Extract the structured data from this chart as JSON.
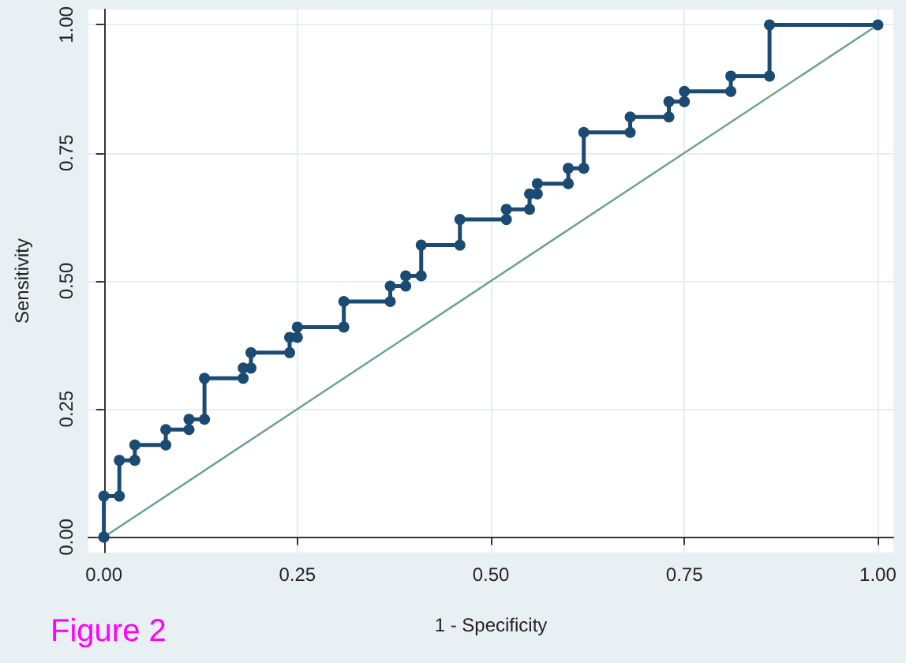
{
  "chart_data": {
    "type": "line",
    "xlabel": "1 - Specificity",
    "ylabel": "Sensitivity",
    "annotations": [
      "Figure 2"
    ],
    "xlim": [
      -0.02,
      1.02
    ],
    "ylim": [
      -0.03,
      1.03
    ],
    "xticks": [
      {
        "value": 0,
        "label": "0.00"
      },
      {
        "value": 0.25,
        "label": "0.25"
      },
      {
        "value": 0.5,
        "label": "0.50"
      },
      {
        "value": 0.75,
        "label": "0.75"
      },
      {
        "value": 1,
        "label": "1.00"
      }
    ],
    "yticks": [
      {
        "value": 0,
        "label": "0.00"
      },
      {
        "value": 0.25,
        "label": "0.25"
      },
      {
        "value": 0.5,
        "label": "0.50"
      },
      {
        "value": 0.75,
        "label": "0.75"
      },
      {
        "value": 1,
        "label": "1.00"
      }
    ],
    "grid": true,
    "line_style": "solid",
    "series": [
      {
        "color": "#1b4a72",
        "marker": "circle",
        "x": [
          0,
          0,
          0,
          0.02,
          0.02,
          0.04,
          0.04,
          0.08,
          0.08,
          0.11,
          0.11,
          0.13,
          0.13,
          0.18,
          0.18,
          0.19,
          0.19,
          0.24,
          0.24,
          0.25,
          0.25,
          0.31,
          0.31,
          0.37,
          0.37,
          0.39,
          0.39,
          0.41,
          0.41,
          0.46,
          0.46,
          0.52,
          0.52,
          0.55,
          0.55,
          0.56,
          0.56,
          0.6,
          0.6,
          0.62,
          0.62,
          0.68,
          0.68,
          0.73,
          0.73,
          0.75,
          0.75,
          0.81,
          0.81,
          0.86,
          0.86,
          1
        ],
        "values": [
          0,
          0,
          0.08,
          0.08,
          0.15,
          0.15,
          0.18,
          0.18,
          0.21,
          0.21,
          0.23,
          0.23,
          0.31,
          0.31,
          0.33,
          0.33,
          0.36,
          0.36,
          0.39,
          0.39,
          0.41,
          0.41,
          0.46,
          0.46,
          0.49,
          0.49,
          0.51,
          0.51,
          0.57,
          0.57,
          0.62,
          0.62,
          0.64,
          0.64,
          0.67,
          0.67,
          0.69,
          0.69,
          0.72,
          0.72,
          0.79,
          0.79,
          0.82,
          0.82,
          0.85,
          0.85,
          0.87,
          0.87,
          0.9,
          0.9,
          1,
          1
        ]
      },
      {
        "color": "#6aa08c",
        "marker": "none",
        "x": [
          0,
          1
        ],
        "values": [
          0,
          1
        ]
      }
    ]
  }
}
